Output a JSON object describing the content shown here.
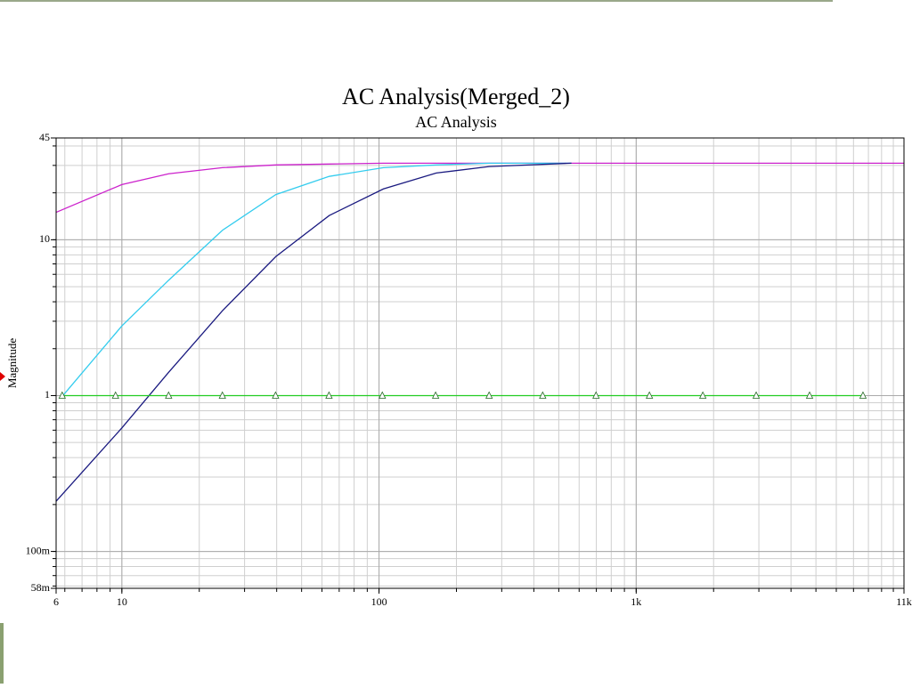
{
  "chart_data": {
    "type": "line",
    "title": "AC Analysis(Merged_2)",
    "subtitle": "AC Analysis",
    "y_label": "Magnitude",
    "log_x": true,
    "log_y": true,
    "grid": true,
    "minor_grid": true,
    "xlim": [
      5.55,
      11000
    ],
    "xticks": [
      {
        "value": 5.55,
        "label": "6"
      },
      10,
      100,
      {
        "value": 1000,
        "label": "1k"
      },
      {
        "value": 11000,
        "label": "11k"
      }
    ],
    "ylim": [
      0.058,
      45
    ],
    "yticks": [
      {
        "value": 0.058,
        "label": "58m"
      },
      {
        "value": 0.1,
        "label": "100m"
      },
      1,
      10,
      45
    ],
    "series": [
      {
        "color": "#cc22cc",
        "x": [
          5.55,
          10,
          15.2,
          24.6,
          39.7,
          64,
          104,
          11000
        ],
        "values": [
          15,
          22.6,
          26.5,
          29,
          30.2,
          30.6,
          31,
          31
        ]
      },
      {
        "color": "#33ccee",
        "x": [
          5.9,
          10,
          15.2,
          24.6,
          39.7,
          64,
          104,
          167,
          268,
          560
        ],
        "values": [
          1,
          2.8,
          5.5,
          11.5,
          19.5,
          25.5,
          29,
          30.2,
          31,
          31
        ]
      },
      {
        "color": "#1a1a80",
        "x": [
          5.55,
          10,
          15.2,
          24.6,
          39.7,
          64,
          104,
          167,
          268,
          560
        ],
        "values": [
          0.21,
          0.62,
          1.41,
          3.5,
          7.8,
          14.3,
          21.2,
          26.8,
          29.5,
          31
        ]
      },
      {
        "color": "#22cc22",
        "marker": "triangle",
        "x": [
          5.86,
          9.45,
          15.2,
          24.6,
          39.6,
          63.9,
          103,
          166,
          268,
          433,
          698,
          1126,
          1816,
          2929,
          4725,
          7621
        ],
        "values": [
          1,
          1,
          1,
          1,
          1,
          1,
          1,
          1,
          1,
          1,
          1,
          1,
          1,
          1,
          1,
          1
        ]
      }
    ]
  }
}
